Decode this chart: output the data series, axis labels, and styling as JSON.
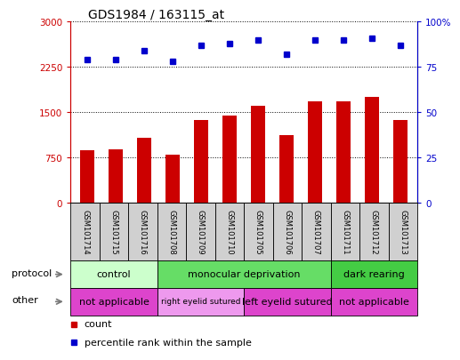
{
  "title": "GDS1984 / 163115_at",
  "samples": [
    "GSM101714",
    "GSM101715",
    "GSM101716",
    "GSM101708",
    "GSM101709",
    "GSM101710",
    "GSM101705",
    "GSM101706",
    "GSM101707",
    "GSM101711",
    "GSM101712",
    "GSM101713"
  ],
  "counts": [
    870,
    880,
    1080,
    790,
    1370,
    1450,
    1600,
    1120,
    1680,
    1680,
    1760,
    1370
  ],
  "percentiles": [
    79,
    79,
    84,
    78,
    87,
    88,
    90,
    82,
    90,
    90,
    91,
    87
  ],
  "bar_color": "#cc0000",
  "dot_color": "#0000cc",
  "ylim_left": [
    0,
    3000
  ],
  "ylim_right": [
    0,
    100
  ],
  "yticks_left": [
    0,
    750,
    1500,
    2250,
    3000
  ],
  "yticks_right": [
    0,
    25,
    50,
    75,
    100
  ],
  "ytick_labels_left": [
    "0",
    "750",
    "1500",
    "2250",
    "3000"
  ],
  "ytick_labels_right": [
    "0",
    "25",
    "50",
    "75",
    "100%"
  ],
  "protocol_groups": [
    {
      "label": "control",
      "start": 0,
      "end": 3,
      "color": "#ccffcc"
    },
    {
      "label": "monocular deprivation",
      "start": 3,
      "end": 9,
      "color": "#66dd66"
    },
    {
      "label": "dark rearing",
      "start": 9,
      "end": 12,
      "color": "#44cc44"
    }
  ],
  "other_groups": [
    {
      "label": "not applicable",
      "start": 0,
      "end": 3,
      "color": "#dd44cc"
    },
    {
      "label": "right eyelid sutured",
      "start": 3,
      "end": 6,
      "color": "#ee99ee"
    },
    {
      "label": "left eyelid sutured",
      "start": 6,
      "end": 9,
      "color": "#dd44cc"
    },
    {
      "label": "not applicable",
      "start": 9,
      "end": 12,
      "color": "#dd44cc"
    }
  ],
  "protocol_label": "protocol",
  "other_label": "other",
  "legend_count_label": "count",
  "legend_pct_label": "percentile rank within the sample",
  "title_fontsize": 10,
  "tick_fontsize": 7.5,
  "bar_width": 0.5,
  "dot_size": 5,
  "sample_label_fontsize": 6,
  "row_label_fontsize": 8,
  "row_text_fontsize": 8,
  "legend_fontsize": 8,
  "gray_box_color": "#d0d0d0"
}
